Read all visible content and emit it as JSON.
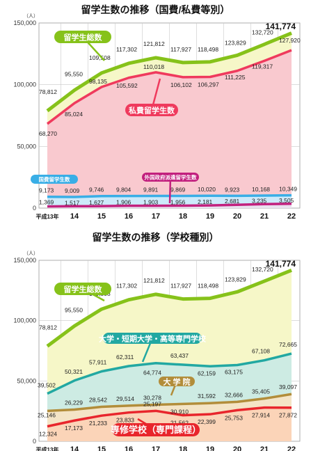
{
  "chart_data": [
    {
      "type": "area",
      "title": "留学生数の推移（国費/私費等別）",
      "unit_label": "（人）",
      "categories": [
        "平成13年",
        "14",
        "15",
        "16",
        "17",
        "18",
        "19",
        "20",
        "21",
        "22"
      ],
      "yticks": [
        "150,000",
        "100,000",
        "50,000",
        "0"
      ],
      "ylim": [
        0,
        150000
      ],
      "highlight": "141,774",
      "series": [
        {
          "name": "留学生総数",
          "color": "#86c21a",
          "fill": "#f6f7c8",
          "values": [
            78812,
            95550,
            109508,
            117302,
            121812,
            117927,
            118498,
            123829,
            132720,
            141774
          ],
          "labels": [
            "78,812",
            "95,550",
            "109,508",
            "117,302",
            "121,812",
            "117,927",
            "118,498",
            "123,829",
            "132,720",
            ""
          ]
        },
        {
          "name": "私費留学生数",
          "color": "#ef3a5d",
          "fill": "#f9c9cf",
          "values": [
            68270,
            85024,
            98135,
            105592,
            110018,
            106102,
            106297,
            111225,
            119317,
            127920
          ],
          "labels": [
            "68,270",
            "85,024",
            "98,135",
            "105,592",
            "110,018",
            "106,102",
            "106,297",
            "111,225",
            "119,317",
            "127,920"
          ]
        },
        {
          "name": "国費留学生数",
          "color": "#39aee6",
          "fill": "#cdeafa",
          "values": [
            9173,
            9009,
            9746,
            9804,
            9891,
            9869,
            10020,
            9923,
            10168,
            10349
          ],
          "labels": [
            "9,173",
            "9,009",
            "9,746",
            "9,804",
            "9,891",
            "9,869",
            "10,020",
            "9,923",
            "10,168",
            "10,349"
          ]
        },
        {
          "name": "外国政府派遣留学生数",
          "color": "#c2207e",
          "fill": "#e9e1ef",
          "values": [
            1369,
            1517,
            1627,
            1906,
            1903,
            1956,
            2181,
            2681,
            3235,
            3505
          ],
          "labels": [
            "1,369",
            "1,517",
            "1,627",
            "1,906",
            "1,903",
            "1,956",
            "2,181",
            "2,681",
            "3,235",
            "3,505"
          ]
        }
      ]
    },
    {
      "type": "area",
      "title": "留学生数の推移（学校種別）",
      "unit_label": "（人）",
      "categories": [
        "平成13年",
        "14",
        "15",
        "16",
        "17",
        "18",
        "19",
        "20",
        "21",
        "22"
      ],
      "yticks": [
        "150,000",
        "100,000",
        "50,000",
        "0"
      ],
      "ylim": [
        0,
        150000
      ],
      "highlight": "141,774",
      "series": [
        {
          "name": "留学生総数",
          "color": "#86c21a",
          "fill": "#f6f7c8",
          "values": [
            78812,
            95550,
            109508,
            117302,
            121812,
            117927,
            118498,
            123829,
            132720,
            141774
          ],
          "labels": [
            "78,812",
            "95,550",
            "109,508",
            "117,302",
            "121,812",
            "117,927",
            "118,498",
            "123,829",
            "132,720",
            ""
          ]
        },
        {
          "name": "大学・短期大学・高等専門学校",
          "color": "#22a8a2",
          "fill": "#cdebe3",
          "values": [
            39502,
            50321,
            57911,
            62311,
            64774,
            63437,
            62159,
            63175,
            67108,
            72665
          ],
          "labels": [
            "39,502",
            "50,321",
            "57,911",
            "62,311",
            "64,774",
            "63,437",
            "62,159",
            "63,175",
            "67,108",
            "72,665"
          ]
        },
        {
          "name": "大 学 院",
          "color": "#b28d3a",
          "fill": "#f4e4c6",
          "values": [
            25146,
            26229,
            28542,
            29514,
            30278,
            30910,
            31592,
            32666,
            35405,
            39097
          ],
          "labels": [
            "25,146",
            "26,229",
            "28,542",
            "29,514",
            "30,278",
            "30,910",
            "31,592",
            "32,666",
            "35,405",
            "39,097"
          ]
        },
        {
          "name": "専修学校（専門課程）",
          "color": "#e8252c",
          "fill": "#fbd4b8",
          "values": [
            12324,
            17173,
            21233,
            23833,
            25197,
            21562,
            22399,
            25753,
            27914,
            27872
          ],
          "labels": [
            "12,324",
            "17,173",
            "21,233",
            "23,833",
            "25,197",
            "21,562",
            "22,399",
            "25,753",
            "27,914",
            "27,872"
          ]
        }
      ]
    }
  ]
}
